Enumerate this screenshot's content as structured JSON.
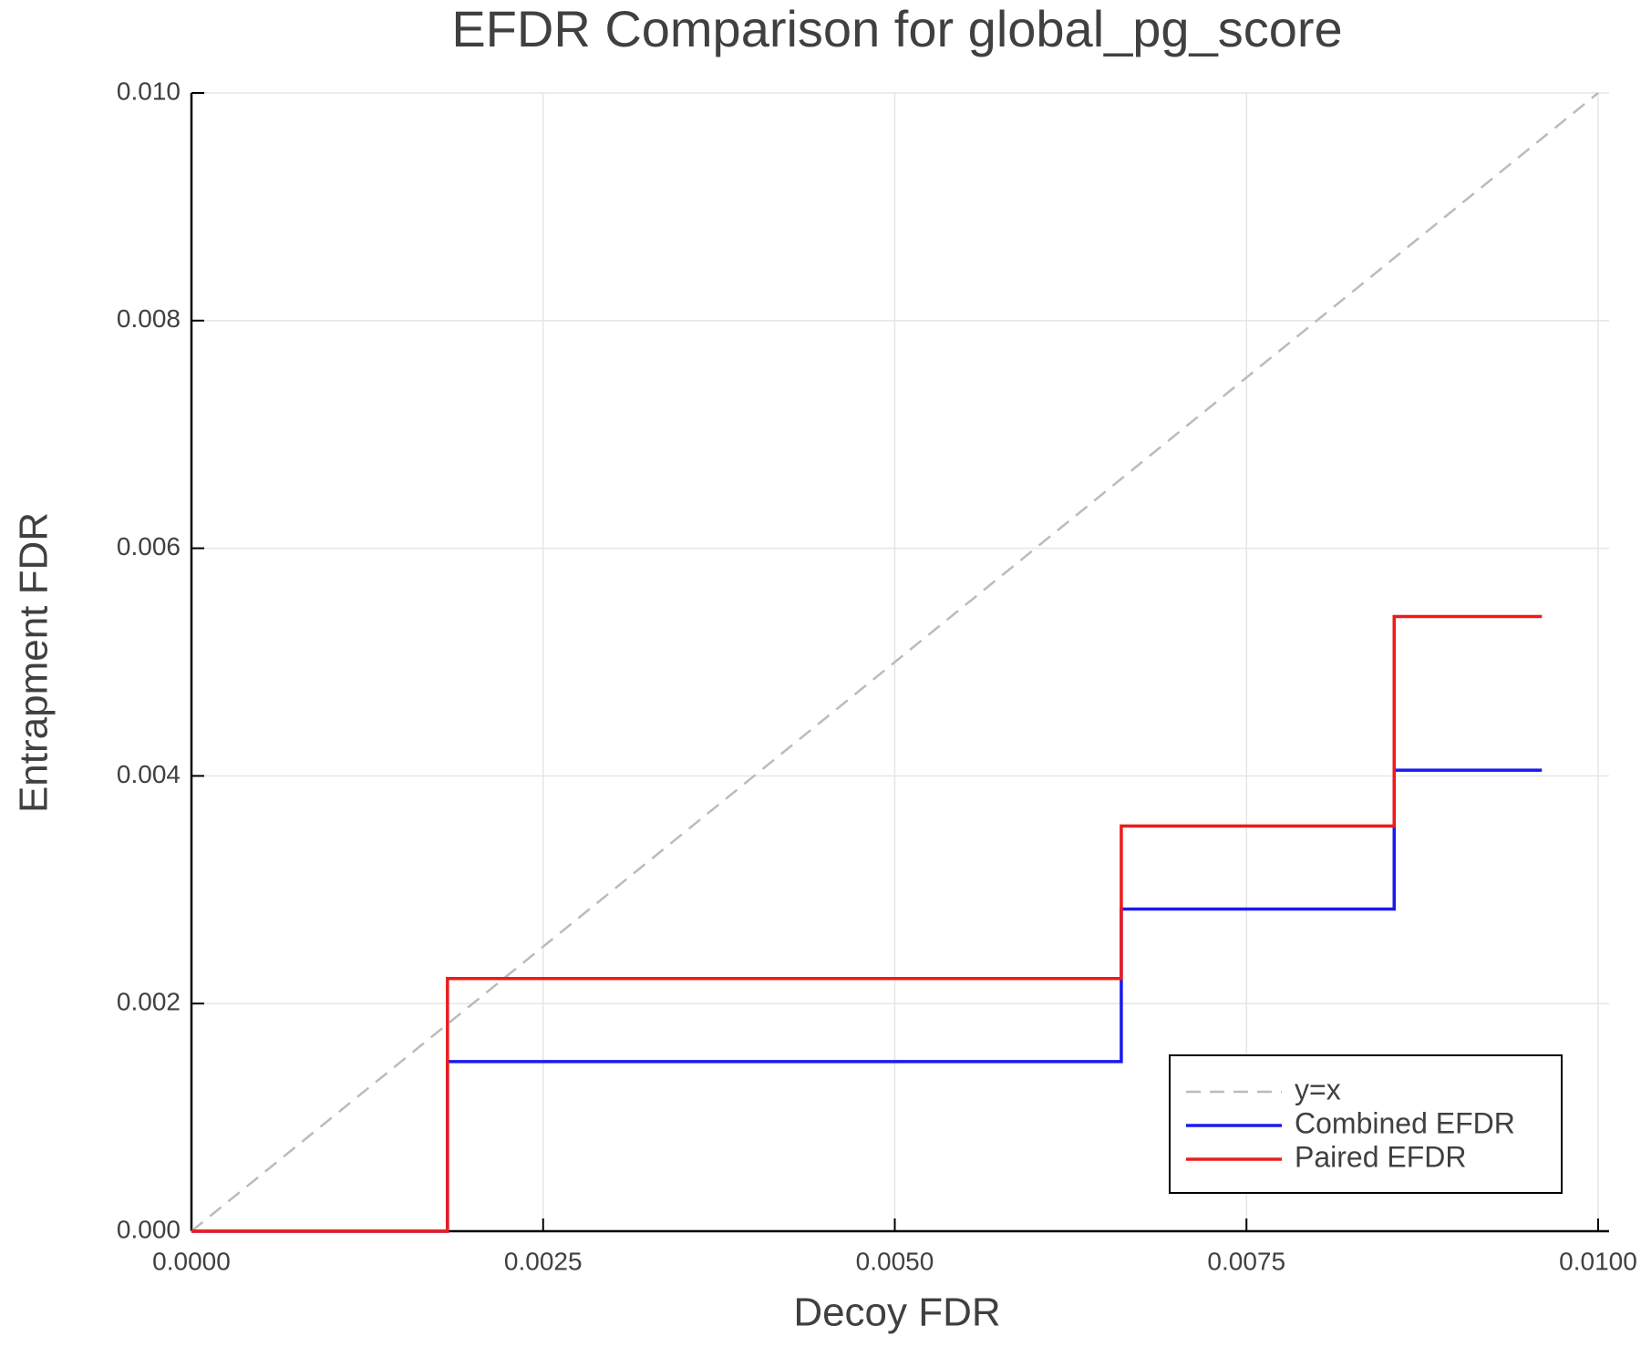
{
  "chart_data": {
    "type": "line",
    "step": "post",
    "title": "EFDR Comparison for global_pg_score",
    "x_label": "Decoy FDR",
    "y_label": "Entrapment FDR",
    "xlim": [
      0,
      0.01
    ],
    "ylim": [
      0,
      0.01
    ],
    "xticks": [
      {
        "value": 0,
        "label": "0.0000"
      },
      {
        "value": 0.0025,
        "label": "0.0025"
      },
      {
        "value": 0.005,
        "label": "0.0050"
      },
      {
        "value": 0.0075,
        "label": "0.0075"
      },
      {
        "value": 0.01,
        "label": "0.0100"
      }
    ],
    "yticks": [
      {
        "value": 0,
        "label": "0.000"
      },
      {
        "value": 0.002,
        "label": "0.002"
      },
      {
        "value": 0.004,
        "label": "0.004"
      },
      {
        "value": 0.006,
        "label": "0.006"
      },
      {
        "value": 0.008,
        "label": "0.008"
      },
      {
        "value": 0.01,
        "label": "0.010"
      }
    ],
    "grid": true,
    "legend": "bottom-right",
    "series": [
      {
        "name": "y=x",
        "color": "#bbbbbb",
        "dashed": true,
        "step": false,
        "x": [
          0,
          0.01
        ],
        "values": [
          0,
          0.01
        ]
      },
      {
        "name": "Combined EFDR",
        "color": "#1a1aee",
        "x": [
          0,
          0.00182,
          0.00661,
          0.00855,
          0.0096
        ],
        "values": [
          0,
          0.00149,
          0.00283,
          0.00405,
          0.00405
        ]
      },
      {
        "name": "Paired EFDR",
        "color": "#ee1a1a",
        "x": [
          0,
          0.00182,
          0.00661,
          0.00855,
          0.0096
        ],
        "values": [
          0,
          0.00222,
          0.00356,
          0.0054,
          0.0054
        ]
      }
    ]
  }
}
